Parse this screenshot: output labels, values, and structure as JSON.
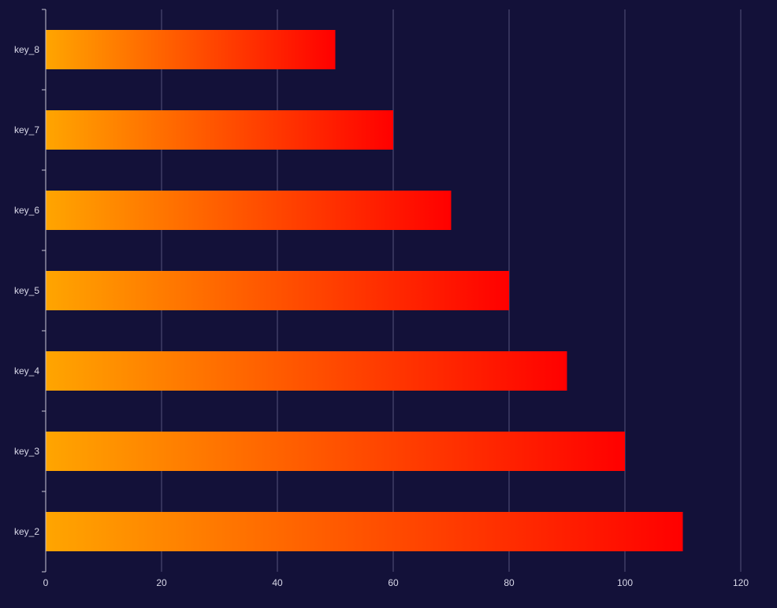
{
  "colors": {
    "background": "#131139",
    "grid": "#55547a",
    "axis": "#c8c8d8",
    "label": "#d8d8e8",
    "bar_start": "#ffa500",
    "bar_end": "#ff0000"
  },
  "chart_data": {
    "type": "bar",
    "orientation": "horizontal",
    "title": "",
    "xlabel": "",
    "ylabel": "",
    "categories": [
      "key_2",
      "key_3",
      "key_4",
      "key_5",
      "key_6",
      "key_7",
      "key_8"
    ],
    "values": [
      110,
      100,
      90,
      80,
      70,
      60,
      50
    ],
    "xlim": [
      0,
      120
    ],
    "xticks": [
      0,
      20,
      40,
      60,
      80,
      100,
      120
    ],
    "grid": "vertical",
    "legend": "none",
    "bar_fill": "horizontal gradient orange to red"
  }
}
